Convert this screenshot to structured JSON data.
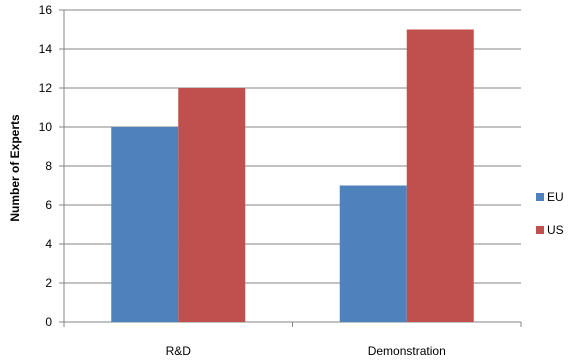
{
  "chart_data": {
    "type": "bar",
    "categories": [
      "R&D",
      "Demonstration"
    ],
    "series": [
      {
        "name": "EU",
        "values": [
          10,
          7
        ],
        "color": "#4F81BD"
      },
      {
        "name": "US",
        "values": [
          12,
          15
        ],
        "color": "#C0504D"
      }
    ],
    "ylabel": "Number of Experts",
    "xlabel": "",
    "ylim": [
      0,
      16
    ],
    "yticks": [
      0,
      2,
      4,
      6,
      8,
      10,
      12,
      14,
      16
    ],
    "grid": true,
    "legend_position": "right"
  }
}
